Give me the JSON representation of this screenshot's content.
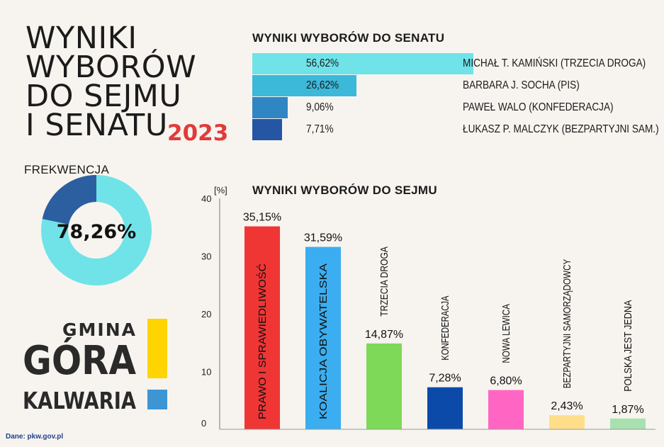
{
  "title": {
    "lines": [
      "WYNIKI",
      "WYBORÓW",
      "DO SEJMU",
      "I SENATU"
    ],
    "year": "2023"
  },
  "senate": {
    "title": "WYNIKI WYBORÓW DO SENATU",
    "candidates": [
      {
        "name": "MICHAŁ T. KAMIŃSKI (TRZECIA DROGA)",
        "pct_label": "56,62%",
        "value": 56.62,
        "color": "#6fe3e8"
      },
      {
        "name": "BARBARA J. SOCHA (PIS)",
        "pct_label": "26,62%",
        "value": 26.62,
        "color": "#3cb8d9"
      },
      {
        "name": "PAWEŁ WALO (KONFEDERACJA)",
        "pct_label": "9,06%",
        "value": 9.06,
        "color": "#2f86c3"
      },
      {
        "name": "ŁUKASZ P. MALCZYK (BEZPARTYJNI SAM.)",
        "pct_label": "7,71%",
        "value": 7.71,
        "color": "#2456a4"
      }
    ]
  },
  "turnout": {
    "label": "FREKWENCJA",
    "value_label": "78,26%",
    "value": 78.26,
    "color_main": "#6fe3e8",
    "color_rest": "#2c5fa0"
  },
  "logo": {
    "line1": "GMINA",
    "line2": "GÓRA",
    "line3": "KALWARIA",
    "yellow": "#ffd400",
    "blue": "#3d95d4"
  },
  "source": "Dane: pkw.gov.pl",
  "chart_data": {
    "type": "bar",
    "title": "WYNIKI WYBORÓW DO SEJMU",
    "ylabel": "[%]",
    "ylim": [
      0,
      40
    ],
    "yticks": [
      "0",
      "10",
      "20",
      "30",
      "40"
    ],
    "categories": [
      "PRAWO I SPRAWIEDLIWOŚĆ",
      "KOALICJA OBYWATELSKA",
      "TRZECIA DROGA",
      "KONFEDERACJA",
      "NOWA LEWICA",
      "BEZPARTYJNI SAMORZĄDOWCY",
      "POLSKA JEST JEDNA"
    ],
    "values": [
      35.15,
      31.59,
      14.87,
      7.28,
      6.8,
      2.43,
      1.87
    ],
    "value_labels": [
      "35,15%",
      "31,59%",
      "14,87%",
      "7,28%",
      "6,80%",
      "2,43%",
      "1,87%"
    ],
    "colors": [
      "#f03535",
      "#3aaef0",
      "#7dd957",
      "#0b4aa8",
      "#ff66c4",
      "#ffde8a",
      "#a9e0b0"
    ],
    "grid": false
  }
}
